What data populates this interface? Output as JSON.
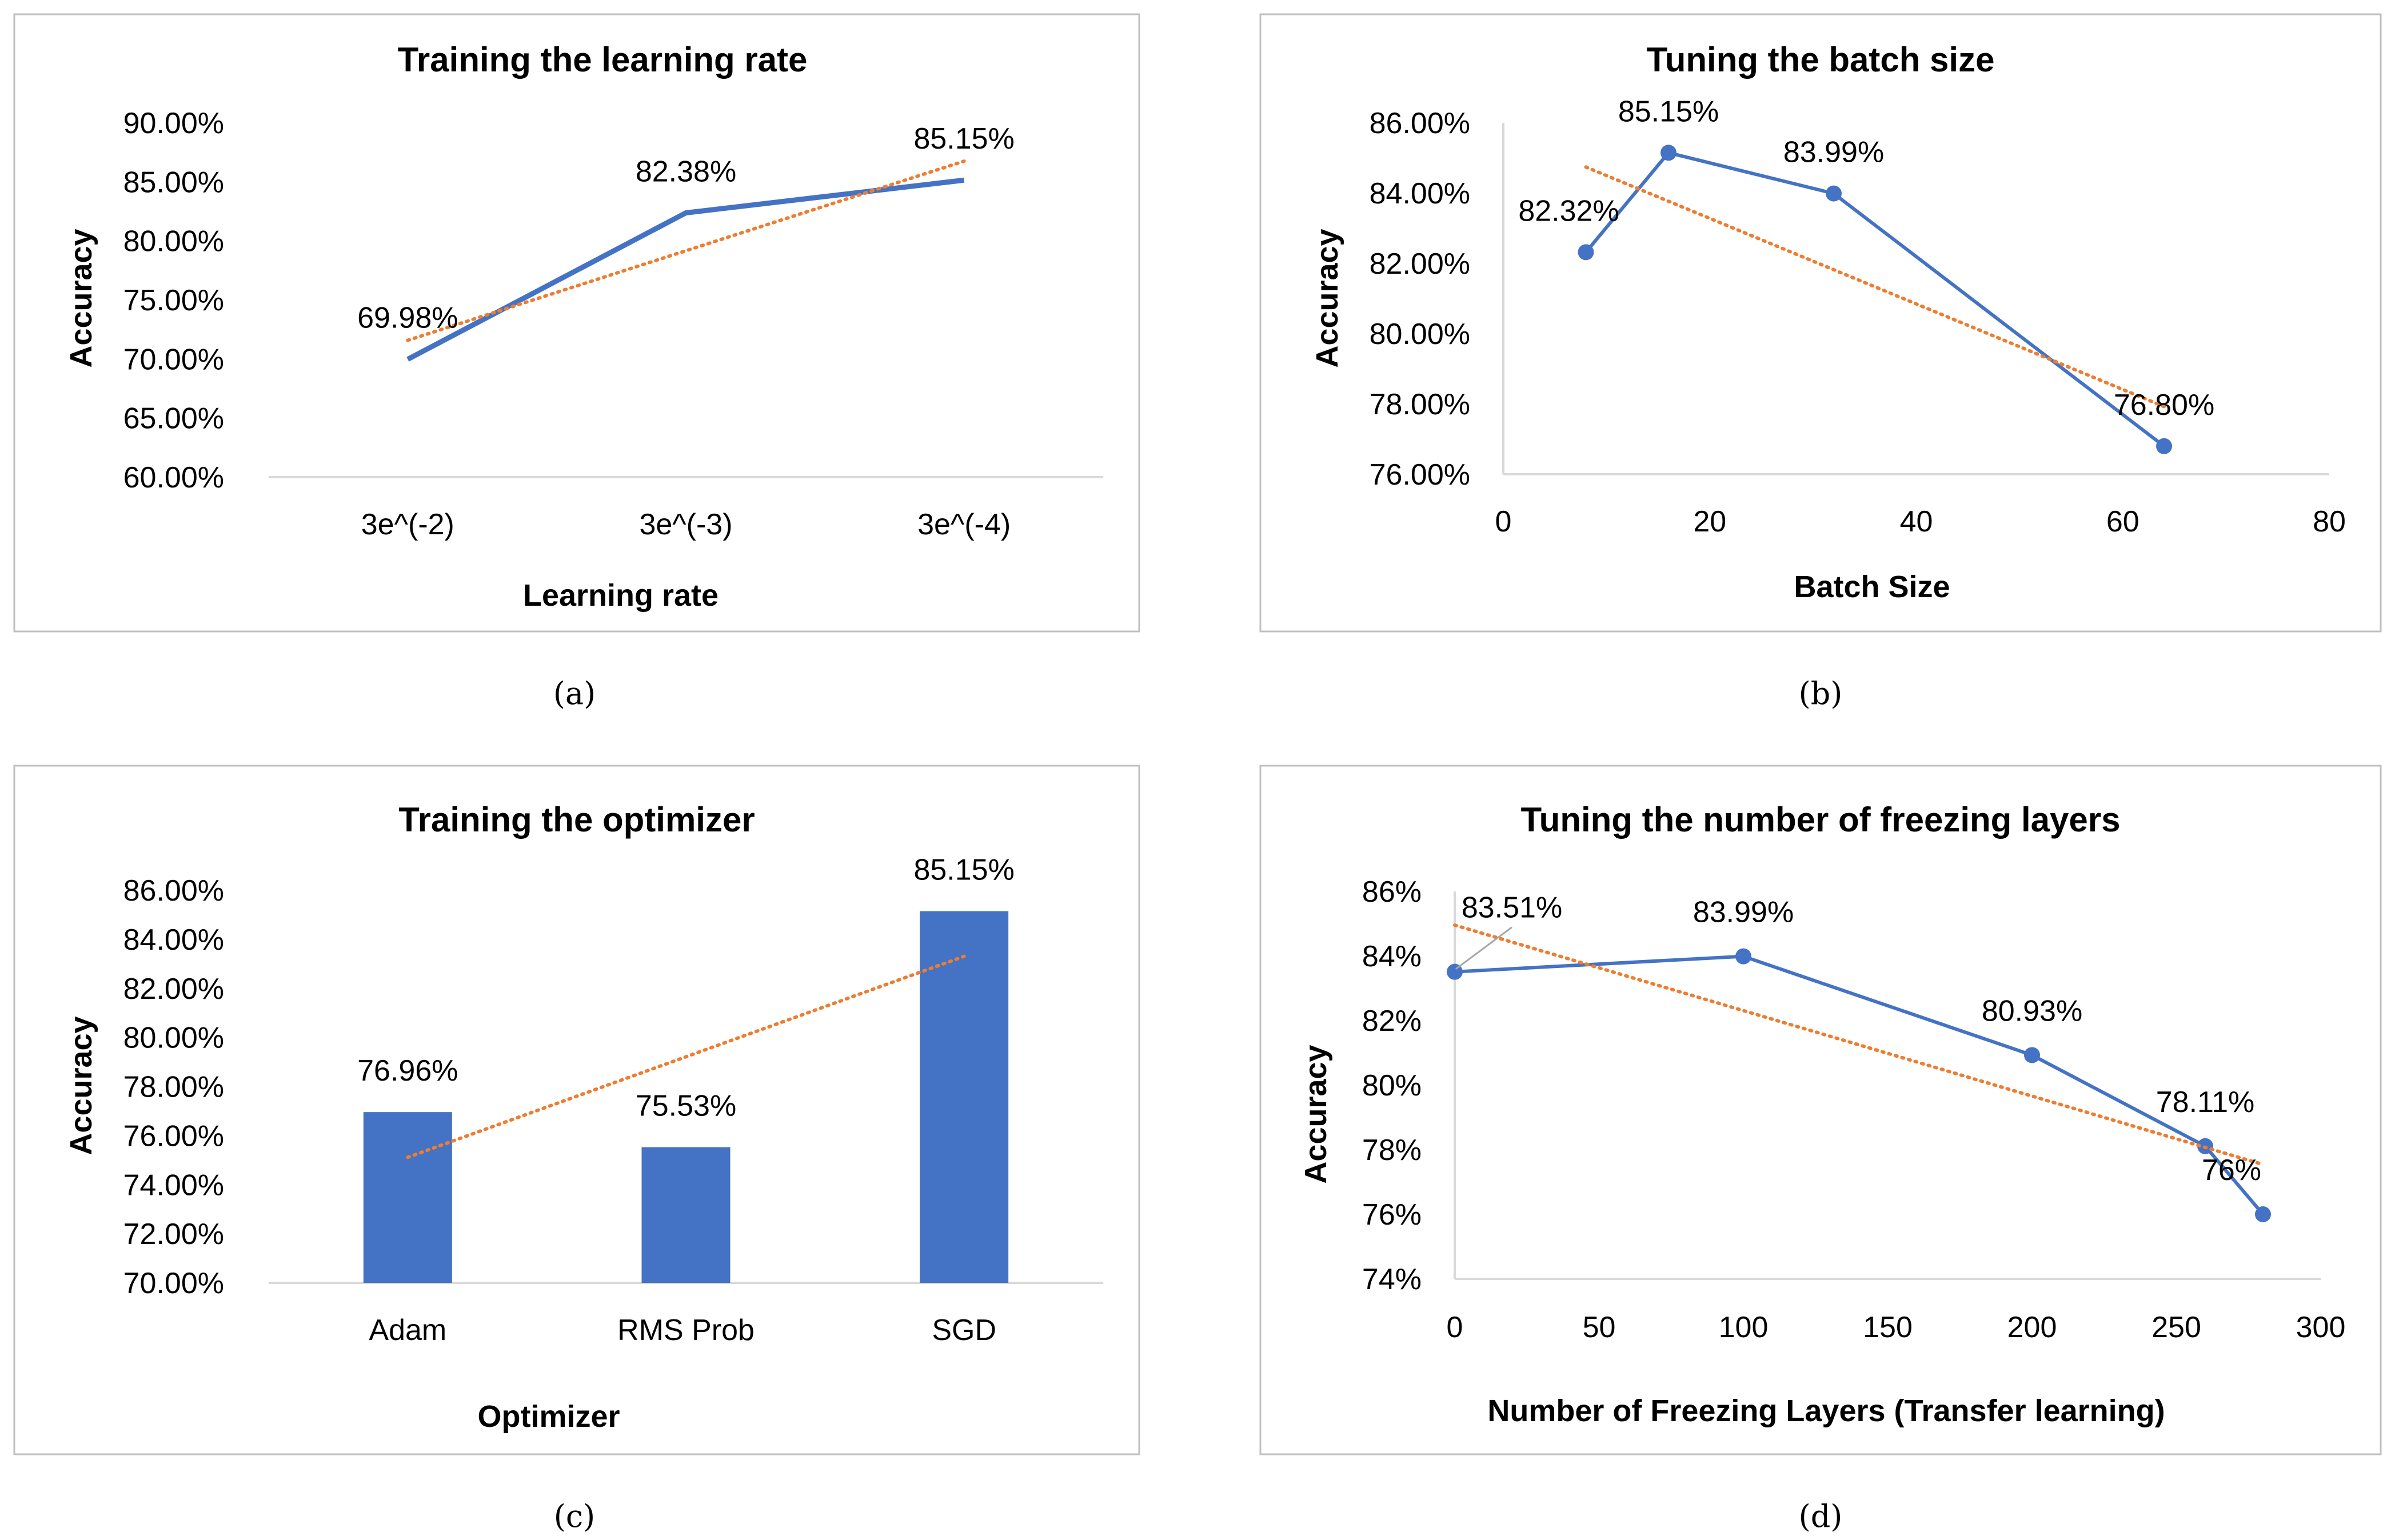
{
  "colors": {
    "series": "#4472C4",
    "trend": "#ED7D31",
    "axis": "#D9D9D9",
    "frame": "#BFBFBF",
    "leader": "#A6A6A6"
  },
  "chart_data": [
    {
      "id": "a",
      "type": "line",
      "caption": "(a)",
      "title": "Training the learning rate",
      "xlabel": "Learning rate",
      "ylabel": "Accuracy",
      "categories": [
        "3e^(-2)",
        "3e^(-3)",
        "3e^(-4)"
      ],
      "series": [
        {
          "name": "Accuracy",
          "values": [
            69.98,
            82.38,
            85.15
          ],
          "markers": false
        }
      ],
      "data_labels": [
        "69.98%",
        "82.38%",
        "85.15%"
      ],
      "trendline": "linear",
      "ylim": [
        60,
        90
      ],
      "ystep": 5,
      "yticks": [
        "60.00%",
        "65.00%",
        "70.00%",
        "75.00%",
        "80.00%",
        "85.00%",
        "90.00%"
      ],
      "grid": false
    },
    {
      "id": "b",
      "type": "scatter",
      "caption": "(b)",
      "title": "Tuning the batch size",
      "xlabel": "Batch Size",
      "ylabel": "Accuracy",
      "x": [
        8,
        16,
        32,
        64
      ],
      "series": [
        {
          "name": "Accuracy",
          "values": [
            82.32,
            85.15,
            83.99,
            76.8
          ],
          "markers": true
        }
      ],
      "data_labels": [
        "82.32%",
        "85.15%",
        "83.99%",
        "76.80%"
      ],
      "trendline": "linear",
      "xlim": [
        0,
        80
      ],
      "xstep": 20,
      "ylim": [
        76,
        86
      ],
      "ystep": 2,
      "xticks": [
        "0",
        "20",
        "40",
        "60",
        "80"
      ],
      "yticks": [
        "76.00%",
        "78.00%",
        "80.00%",
        "82.00%",
        "84.00%",
        "86.00%"
      ],
      "grid": false
    },
    {
      "id": "c",
      "type": "bar",
      "caption": "(c)",
      "title": "Training the optimizer",
      "xlabel": "Optimizer",
      "ylabel": "Accuracy",
      "categories": [
        "Adam",
        "RMS Prob",
        "SGD"
      ],
      "series": [
        {
          "name": "Accuracy",
          "values": [
            76.96,
            75.53,
            85.15
          ]
        }
      ],
      "data_labels": [
        "76.96%",
        "75.53%",
        "85.15%"
      ],
      "trendline": "linear",
      "ylim": [
        70,
        86
      ],
      "ystep": 2,
      "yticks": [
        "70.00%",
        "72.00%",
        "74.00%",
        "76.00%",
        "78.00%",
        "80.00%",
        "82.00%",
        "84.00%",
        "86.00%"
      ],
      "grid": false
    },
    {
      "id": "d",
      "type": "scatter",
      "caption": "(d)",
      "title": "Tuning the number of freezing layers",
      "xlabel": "Number of Freezing Layers (Transfer learning)",
      "ylabel": "Accuracy",
      "x": [
        0,
        100,
        200,
        260,
        280
      ],
      "series": [
        {
          "name": "Accuracy",
          "values": [
            83.51,
            83.99,
            80.93,
            78.11,
            76.0
          ],
          "markers": true
        }
      ],
      "data_labels": [
        "83.51%",
        "83.99%",
        "80.93%",
        "78.11%",
        "76%"
      ],
      "trendline": "linear",
      "xlim": [
        0,
        300
      ],
      "xstep": 50,
      "ylim": [
        74,
        86
      ],
      "ystep": 2,
      "xticks": [
        "0",
        "50",
        "100",
        "150",
        "200",
        "250",
        "300"
      ],
      "yticks": [
        "74%",
        "76%",
        "78%",
        "80%",
        "82%",
        "84%",
        "86%"
      ],
      "grid": false
    }
  ]
}
